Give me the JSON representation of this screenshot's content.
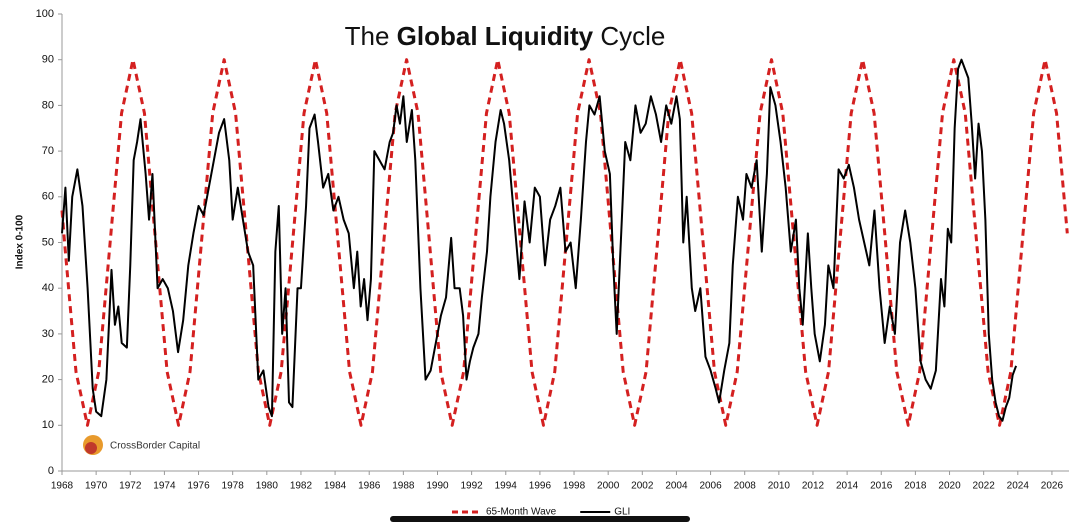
{
  "chart_data": {
    "type": "line",
    "title": [
      "The",
      "Global Liquidity",
      "Cycle"
    ],
    "ylabel": "Index 0-100",
    "logo": "CrossBorder Capital",
    "xlim": [
      1968,
      2027
    ],
    "xticks": [
      1968,
      1970,
      1972,
      1974,
      1976,
      1978,
      1980,
      1982,
      1984,
      1986,
      1988,
      1990,
      1992,
      1994,
      1996,
      1998,
      2000,
      2002,
      2004,
      2006,
      2008,
      2010,
      2012,
      2014,
      2016,
      2018,
      2020,
      2022,
      2024,
      2026
    ],
    "ylim": [
      0,
      100
    ],
    "yticks": [
      0,
      10,
      20,
      30,
      40,
      50,
      60,
      70,
      80,
      90,
      100
    ],
    "grid": false,
    "legend": "bottom",
    "series": [
      {
        "name": "65-Month Wave",
        "color": "#d42020",
        "dashed": true,
        "x": [
          1968.0,
          1968.15,
          1968.82,
          1969.49,
          1970.15,
          1970.82,
          1971.49,
          1972.16,
          1972.83,
          1973.49,
          1974.16,
          1974.83,
          1975.5,
          1976.17,
          1976.83,
          1977.5,
          1978.17,
          1978.84,
          1979.51,
          1980.17,
          1980.84,
          1981.51,
          1982.18,
          1982.85,
          1983.51,
          1984.18,
          1984.85,
          1985.52,
          1986.19,
          1986.85,
          1987.52,
          1988.19,
          1988.86,
          1989.53,
          1990.19,
          1990.86,
          1991.53,
          1992.2,
          1992.87,
          1993.53,
          1994.2,
          1994.87,
          1995.54,
          1996.21,
          1996.87,
          1997.54,
          1998.21,
          1998.88,
          1999.55,
          2000.21,
          2000.88,
          2001.55,
          2002.22,
          2002.89,
          2003.55,
          2004.22,
          2004.89,
          2005.56,
          2006.23,
          2006.89,
          2007.56,
          2008.23,
          2008.9,
          2009.57,
          2010.23,
          2010.9,
          2011.57,
          2012.24,
          2012.91,
          2013.57,
          2014.24,
          2014.91,
          2015.58,
          2016.25,
          2016.91,
          2017.58,
          2018.25,
          2018.92,
          2019.59,
          2020.25,
          2020.92,
          2021.59,
          2022.26,
          2022.93,
          2023.59,
          2024.26,
          2024.93,
          2025.6,
          2026.27,
          2026.9
        ],
        "values": [
          57,
          50,
          21.7,
          10,
          21.7,
          50,
          78.3,
          90,
          78.3,
          50,
          21.7,
          10,
          21.7,
          50,
          78.3,
          90,
          78.3,
          50,
          21.7,
          10,
          21.7,
          50,
          78.3,
          90,
          78.3,
          50,
          21.7,
          10,
          21.7,
          50,
          78.3,
          90,
          78.3,
          50,
          21.7,
          10,
          21.7,
          50,
          78.3,
          90,
          78.3,
          50,
          21.7,
          10,
          21.7,
          50,
          78.3,
          90,
          78.3,
          50,
          21.7,
          10,
          21.7,
          50,
          78.3,
          90,
          78.3,
          50,
          21.7,
          10,
          21.7,
          50,
          78.3,
          90,
          78.3,
          50,
          21.7,
          10,
          21.7,
          50,
          78.3,
          90,
          78.3,
          50,
          21.7,
          10,
          21.7,
          50,
          78.3,
          90,
          78.3,
          50,
          21.7,
          10,
          21.7,
          50,
          78.3,
          90,
          78.3,
          52
        ]
      },
      {
        "name": "GLI",
        "color": "#000000",
        "dashed": false,
        "x": [
          1968.0,
          1968.2,
          1968.4,
          1968.6,
          1968.9,
          1969.2,
          1969.5,
          1969.8,
          1970.0,
          1970.3,
          1970.6,
          1970.9,
          1971.1,
          1971.3,
          1971.5,
          1971.8,
          1972.0,
          1972.2,
          1972.4,
          1972.6,
          1972.9,
          1973.1,
          1973.3,
          1973.6,
          1973.9,
          1974.2,
          1974.5,
          1974.8,
          1975.1,
          1975.4,
          1975.7,
          1976.0,
          1976.3,
          1976.6,
          1976.9,
          1977.2,
          1977.5,
          1977.8,
          1978.0,
          1978.3,
          1978.6,
          1978.9,
          1979.2,
          1979.5,
          1979.8,
          1980.1,
          1980.3,
          1980.5,
          1980.7,
          1980.9,
          1981.1,
          1981.3,
          1981.5,
          1981.8,
          1982.0,
          1982.3,
          1982.5,
          1982.8,
          1983.0,
          1983.3,
          1983.6,
          1983.9,
          1984.2,
          1984.5,
          1984.8,
          1985.1,
          1985.3,
          1985.5,
          1985.7,
          1985.9,
          1986.1,
          1986.3,
          1986.6,
          1986.9,
          1987.2,
          1987.4,
          1987.6,
          1987.8,
          1988.0,
          1988.2,
          1988.5,
          1988.7,
          1989.0,
          1989.3,
          1989.6,
          1989.9,
          1990.2,
          1990.5,
          1990.8,
          1991.0,
          1991.3,
          1991.5,
          1991.7,
          1991.9,
          1992.1,
          1992.4,
          1992.6,
          1992.9,
          1993.1,
          1993.4,
          1993.7,
          1993.9,
          1994.2,
          1994.5,
          1994.8,
          1995.1,
          1995.4,
          1995.7,
          1996.0,
          1996.3,
          1996.6,
          1996.9,
          1997.2,
          1997.5,
          1997.8,
          1998.1,
          1998.4,
          1998.7,
          1998.9,
          1999.2,
          1999.5,
          1999.8,
          2000.1,
          2000.3,
          2000.5,
          2000.8,
          2001.0,
          2001.3,
          2001.6,
          2001.9,
          2002.2,
          2002.5,
          2002.8,
          2003.1,
          2003.4,
          2003.7,
          2004.0,
          2004.2,
          2004.4,
          2004.6,
          2004.9,
          2005.1,
          2005.4,
          2005.7,
          2006.0,
          2006.3,
          2006.5,
          2006.8,
          2007.1,
          2007.3,
          2007.6,
          2007.9,
          2008.1,
          2008.4,
          2008.7,
          2009.0,
          2009.3,
          2009.5,
          2009.8,
          2010.1,
          2010.4,
          2010.7,
          2011.0,
          2011.2,
          2011.4,
          2011.7,
          2011.9,
          2012.1,
          2012.4,
          2012.7,
          2012.9,
          2013.2,
          2013.5,
          2013.8,
          2014.1,
          2014.4,
          2014.7,
          2015.0,
          2015.3,
          2015.6,
          2015.9,
          2016.2,
          2016.5,
          2016.8,
          2017.1,
          2017.4,
          2017.7,
          2018.0,
          2018.3,
          2018.6,
          2018.9,
          2019.2,
          2019.5,
          2019.7,
          2019.9,
          2020.1,
          2020.3,
          2020.5,
          2020.7,
          2020.9,
          2021.1,
          2021.3,
          2021.5,
          2021.7,
          2021.9,
          2022.1,
          2022.3,
          2022.5,
          2022.7,
          2022.9,
          2023.1,
          2023.3,
          2023.5,
          2023.7,
          2023.9
        ],
        "values": [
          52,
          62,
          46,
          60,
          66,
          58,
          40,
          18,
          13,
          12,
          20,
          44,
          32,
          36,
          28,
          27,
          45,
          68,
          72,
          77,
          65,
          55,
          65,
          40,
          42,
          40,
          35,
          26,
          33,
          45,
          52,
          58,
          56,
          62,
          68,
          74,
          77,
          68,
          55,
          62,
          55,
          48,
          45,
          20,
          22,
          14,
          12,
          48,
          58,
          30,
          40,
          15,
          14,
          40,
          40,
          58,
          75,
          78,
          72,
          62,
          65,
          57,
          60,
          55,
          52,
          40,
          48,
          36,
          42,
          33,
          42,
          70,
          68,
          66,
          72,
          74,
          80,
          76,
          82,
          72,
          79,
          68,
          40,
          20,
          22,
          28,
          34,
          38,
          51,
          40,
          40,
          34,
          20,
          24,
          27,
          30,
          38,
          48,
          60,
          72,
          79,
          76,
          68,
          55,
          42,
          59,
          50,
          62,
          60,
          45,
          55,
          58,
          62,
          48,
          50,
          40,
          55,
          72,
          80,
          78,
          82,
          70,
          65,
          45,
          30,
          55,
          72,
          68,
          80,
          74,
          76,
          82,
          78,
          72,
          80,
          76,
          82,
          77,
          50,
          60,
          40,
          35,
          40,
          25,
          22,
          18,
          15,
          22,
          28,
          45,
          60,
          55,
          65,
          62,
          68,
          48,
          65,
          84,
          80,
          72,
          62,
          48,
          55,
          40,
          32,
          52,
          40,
          30,
          24,
          32,
          45,
          40,
          66,
          64,
          67,
          62,
          55,
          50,
          45,
          57,
          40,
          28,
          36,
          30,
          50,
          57,
          50,
          40,
          24,
          20,
          18,
          22,
          42,
          36,
          53,
          50,
          75,
          88,
          90,
          88,
          86,
          76,
          64,
          76,
          70,
          55,
          30,
          20,
          15,
          12,
          11,
          14,
          16,
          21,
          23
        ]
      }
    ]
  }
}
